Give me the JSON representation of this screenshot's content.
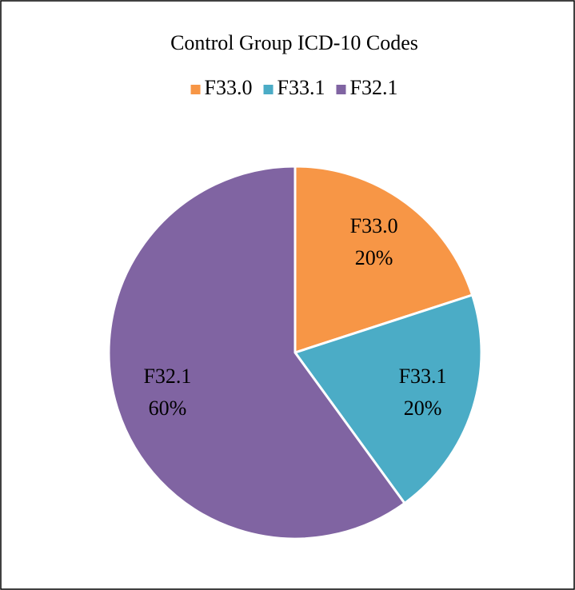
{
  "chart_data": {
    "type": "pie",
    "title": "Control Group ICD-10 Codes",
    "categories": [
      "F33.0",
      "F33.1",
      "F32.1"
    ],
    "values": [
      20,
      20,
      60
    ],
    "value_labels": [
      "20%",
      "20%",
      "60%"
    ],
    "colors": [
      "#f79646",
      "#4bacc6",
      "#8064a2"
    ],
    "legend": "top"
  }
}
